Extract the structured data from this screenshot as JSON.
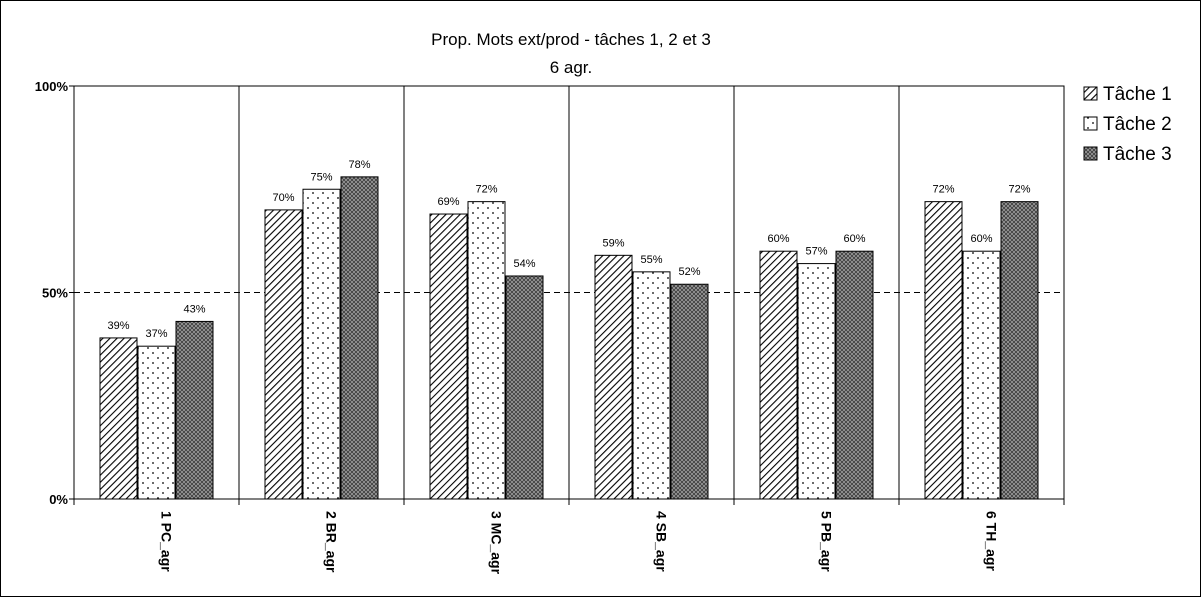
{
  "chart_data": {
    "type": "bar",
    "title": "Prop. Mots ext/prod - tâches 1, 2 et 3",
    "subtitle": "6 agr.",
    "categories": [
      "1 PC_agr",
      "2 BR_agr",
      "3 MC_agr",
      "4 SB_agr",
      "5 PB_agr",
      "6 TH_agr"
    ],
    "series": [
      {
        "name": "Tâche 1",
        "pattern": "diagonal-hatch",
        "values": [
          39,
          70,
          69,
          59,
          60,
          72
        ],
        "labels": [
          "39%",
          "70%",
          "69%",
          "59%",
          "60%",
          "72%"
        ]
      },
      {
        "name": "Tâche 2",
        "pattern": "dotted",
        "values": [
          37,
          75,
          72,
          55,
          57,
          60
        ],
        "labels": [
          "37%",
          "75%",
          "72%",
          "55%",
          "57%",
          "60%"
        ]
      },
      {
        "name": "Tâche 3",
        "pattern": "crosshatch",
        "values": [
          43,
          78,
          54,
          52,
          60,
          72
        ],
        "labels": [
          "43%",
          "78%",
          "54%",
          "52%",
          "60%",
          "72%"
        ]
      }
    ],
    "yticks": [
      {
        "value": 0,
        "label": "0%"
      },
      {
        "value": 50,
        "label": "50%"
      },
      {
        "value": 100,
        "label": "100%"
      }
    ],
    "ylim": [
      0,
      100
    ],
    "reference_line": 50,
    "legend_position": "right",
    "grid": "vertical category separators"
  }
}
